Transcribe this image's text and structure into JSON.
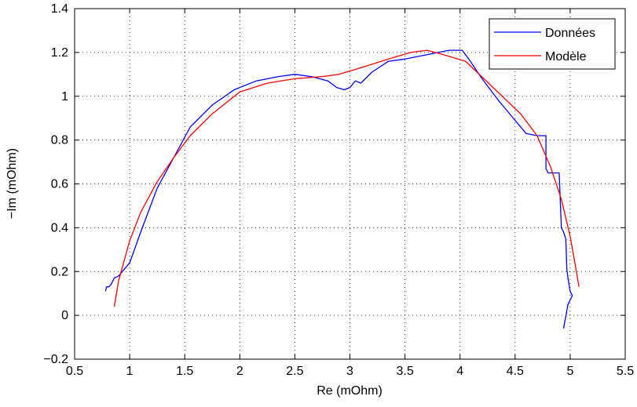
{
  "chart_data": {
    "type": "line",
    "xlabel": "Re (mOhm)",
    "ylabel": "−Im (mOhm)",
    "xlim": [
      0.5,
      5.5
    ],
    "ylim": [
      -0.2,
      1.4
    ],
    "xticks": [
      0.5,
      1,
      1.5,
      2,
      2.5,
      3,
      3.5,
      4,
      4.5,
      5,
      5.5
    ],
    "yticks": [
      -0.2,
      0,
      0.2,
      0.4,
      0.6,
      0.8,
      1,
      1.2,
      1.4
    ],
    "xtick_labels": [
      "0.5",
      "1",
      "1.5",
      "2",
      "2.5",
      "3",
      "3.5",
      "4",
      "4.5",
      "5",
      "5.5"
    ],
    "ytick_labels": [
      "−0.2",
      "0",
      "0.2",
      "0.4",
      "0.6",
      "0.8",
      "1",
      "1.2",
      "1.4"
    ],
    "grid": true,
    "legend_position": "top-right",
    "series": [
      {
        "name": "Données",
        "color": "#0000ff",
        "x": [
          0.78,
          0.79,
          0.81,
          0.83,
          0.86,
          0.9,
          1.0,
          1.1,
          1.25,
          1.4,
          1.55,
          1.75,
          1.95,
          2.15,
          2.35,
          2.5,
          2.65,
          2.8,
          2.88,
          2.95,
          3.0,
          3.05,
          3.1,
          3.2,
          3.35,
          3.5,
          3.7,
          3.9,
          4.02,
          4.08,
          4.2,
          4.35,
          4.5,
          4.6,
          4.7,
          4.78,
          4.78,
          4.8,
          4.9,
          4.92,
          4.94,
          4.96,
          4.97,
          4.98,
          5.0,
          5.02,
          4.98,
          4.94
        ],
        "y": [
          0.11,
          0.13,
          0.13,
          0.14,
          0.17,
          0.18,
          0.24,
          0.38,
          0.58,
          0.72,
          0.86,
          0.96,
          1.03,
          1.07,
          1.09,
          1.1,
          1.09,
          1.07,
          1.04,
          1.03,
          1.04,
          1.07,
          1.06,
          1.11,
          1.16,
          1.17,
          1.19,
          1.21,
          1.21,
          1.17,
          1.08,
          0.98,
          0.89,
          0.83,
          0.82,
          0.82,
          0.67,
          0.65,
          0.65,
          0.4,
          0.38,
          0.35,
          0.21,
          0.17,
          0.11,
          0.09,
          0.05,
          -0.06
        ]
      },
      {
        "name": "Modèle",
        "color": "#ff0000",
        "x": [
          0.86,
          0.9,
          1.0,
          1.1,
          1.25,
          1.4,
          1.55,
          1.75,
          2.0,
          2.25,
          2.5,
          2.75,
          2.9,
          3.1,
          3.35,
          3.55,
          3.7,
          3.85,
          4.05,
          4.3,
          4.55,
          4.7,
          4.82,
          4.92,
          5.0,
          5.05,
          5.08
        ],
        "y": [
          0.04,
          0.16,
          0.34,
          0.47,
          0.61,
          0.72,
          0.82,
          0.92,
          1.02,
          1.06,
          1.08,
          1.09,
          1.1,
          1.13,
          1.17,
          1.2,
          1.21,
          1.19,
          1.16,
          1.04,
          0.92,
          0.82,
          0.68,
          0.53,
          0.36,
          0.22,
          0.13
        ]
      }
    ]
  }
}
